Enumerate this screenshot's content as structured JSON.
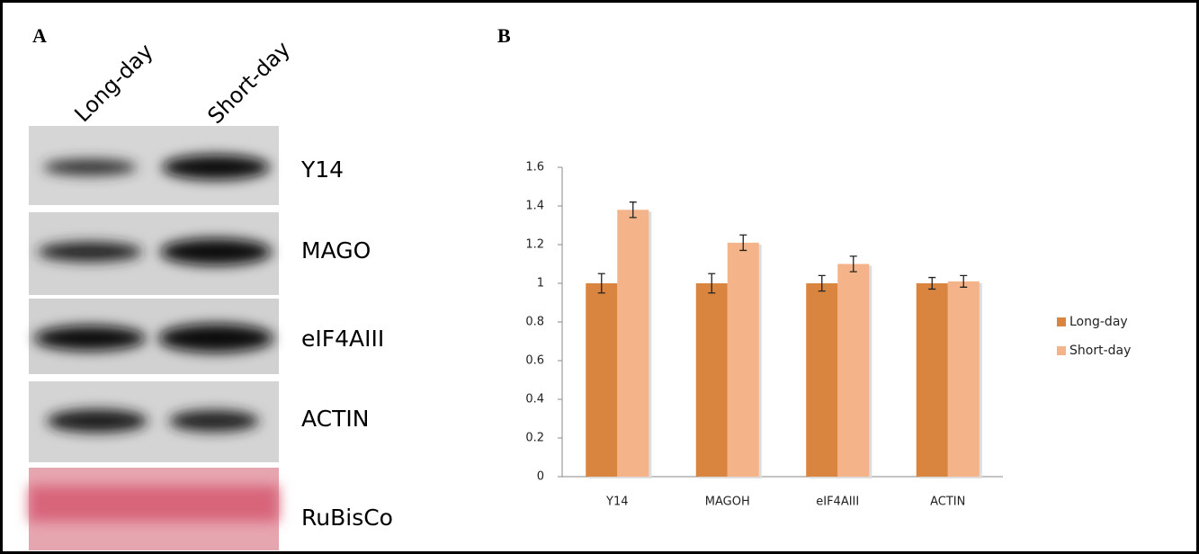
{
  "panel_a": {
    "label": "A",
    "lanes": [
      "Long-day",
      "Short-day"
    ],
    "bands": [
      "Y14",
      "MAGO",
      "eIF4AIII",
      "ACTIN",
      "RuBisCo"
    ]
  },
  "panel_b": {
    "label": "B"
  },
  "chart_data": {
    "type": "bar",
    "categories": [
      "Y14",
      "MAGOH",
      "eIF4AIII",
      "ACTIN"
    ],
    "series": [
      {
        "name": "Long-day",
        "color": "#d9843f",
        "values": [
          1,
          1,
          1,
          1
        ],
        "errors": [
          0.05,
          0.05,
          0.04,
          0.03
        ]
      },
      {
        "name": "Short-day",
        "color": "#f5b38a",
        "values": [
          1.38,
          1.21,
          1.1,
          1.01
        ],
        "errors": [
          0.04,
          0.04,
          0.04,
          0.03
        ]
      }
    ],
    "ylim": [
      0,
      1.6
    ],
    "yticks": [
      0,
      0.2,
      0.4,
      0.6,
      0.8,
      1,
      1.2,
      1.4,
      1.6
    ],
    "error_bars": true,
    "legend": "right"
  }
}
